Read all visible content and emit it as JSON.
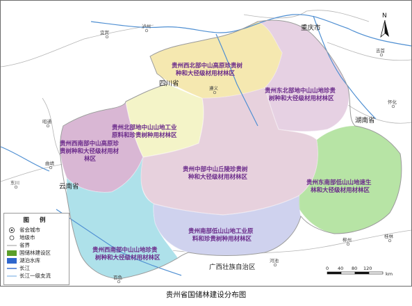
{
  "title": "贵州省国储林建设分布图",
  "north_label": "N",
  "provinces": {
    "sichuan": "四川省",
    "chongqing": "重庆市",
    "hunan": "湖南省",
    "yunnan": "云南省",
    "guangxi": "广西壮族自治区"
  },
  "cities": [
    "宜宾",
    "泸州",
    "遵义",
    "吉首",
    "怀化",
    "昭通",
    "曲靖",
    "东川",
    "百色",
    "河池",
    "柳州",
    "桂林"
  ],
  "zones": [
    {
      "line1": "贵州西北部中山高原珍贵树",
      "line2": "种和大径级材用材林区"
    },
    {
      "line1": "贵州东北部地中山山地珍贵",
      "line2": "树种和大径级材用材林区"
    },
    {
      "line1": "贵州北部地中山山地工业",
      "line2": "原料和珍贵树种用材林区"
    },
    {
      "line1": "贵州西南部中山高原珍",
      "line2": "贵树种和大径级材用材",
      "line3": "林区"
    },
    {
      "line1": "贵州中部中山丘陵珍贵树",
      "line2": "种和大径级材用材林区"
    },
    {
      "line1": "贵州东南部低山山地速生",
      "line2": "林和大径级材用材林区"
    },
    {
      "line1": "贵州南部低山山地工业原",
      "line2": "料和珍贵树种用材林区"
    },
    {
      "line1": "贵州西南部中山山地珍贵",
      "line2": "树种和大径级材用材林区"
    }
  ],
  "legend": {
    "title": "图 例",
    "items": [
      "省会城市",
      "地级市",
      "省界",
      "国储林建设区",
      "湖泊水库",
      "长江",
      "长江一级支流"
    ]
  },
  "scale": {
    "ticks": [
      "0",
      "40",
      "80",
      "120"
    ],
    "unit": "km"
  },
  "colors": {
    "zone_northwest": "#f4e7b0",
    "zone_northeast": "#e6d1e3",
    "zone_north": "#f4f4c8",
    "zone_west": "#d9b7d4",
    "zone_central": "#e7d1dd",
    "zone_southeast": "#b7e3a5",
    "zone_south": "#cfd2ee",
    "zone_southwest": "#aee0ea",
    "forest": "#5a9e2a",
    "lake": "#2e66cc",
    "river": "#4f8fd2",
    "zone_text": "#6a2a8a"
  }
}
